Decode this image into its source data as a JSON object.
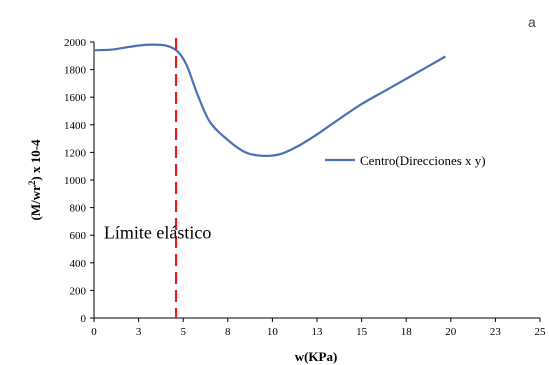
{
  "corner_label": "a",
  "chart_data": {
    "type": "line",
    "xlabel": "w(KPa)",
    "ylabel_main": "(M/wr",
    "ylabel_sup": "2",
    "ylabel_tail": ") x 10-4",
    "xlim": [
      0,
      25
    ],
    "ylim": [
      0,
      2000
    ],
    "x_ticks": [
      0,
      3,
      5,
      8,
      10,
      13,
      15,
      18,
      20,
      23,
      25
    ],
    "x_tick_positions": [
      0,
      2.5,
      5,
      7.5,
      10,
      12.5,
      15,
      17.5,
      20,
      22.5,
      25
    ],
    "y_ticks": [
      0,
      200,
      400,
      600,
      800,
      1000,
      1200,
      1400,
      1600,
      1800,
      2000
    ],
    "grid": false,
    "legend_position": "right",
    "series": [
      {
        "name": "Centro(Direcciones x y)",
        "color": "#4a72b0",
        "x": [
          0,
          1,
          2,
          3,
          4,
          4.7,
          5.2,
          5.8,
          6.5,
          7.5,
          8.5,
          9.5,
          10.5,
          11.5,
          12.5,
          13.5,
          15,
          16.5,
          18,
          19.7
        ],
        "y": [
          1940,
          1945,
          1965,
          1980,
          1975,
          1930,
          1830,
          1620,
          1420,
          1290,
          1200,
          1175,
          1190,
          1250,
          1330,
          1420,
          1550,
          1660,
          1770,
          1895
        ]
      }
    ],
    "annotations": [
      {
        "type": "vline",
        "x": 4.6,
        "color": "#e02020",
        "style": "dashed"
      },
      {
        "type": "text",
        "text": "Límite elástico",
        "x": 0.5,
        "y": 620
      }
    ]
  }
}
